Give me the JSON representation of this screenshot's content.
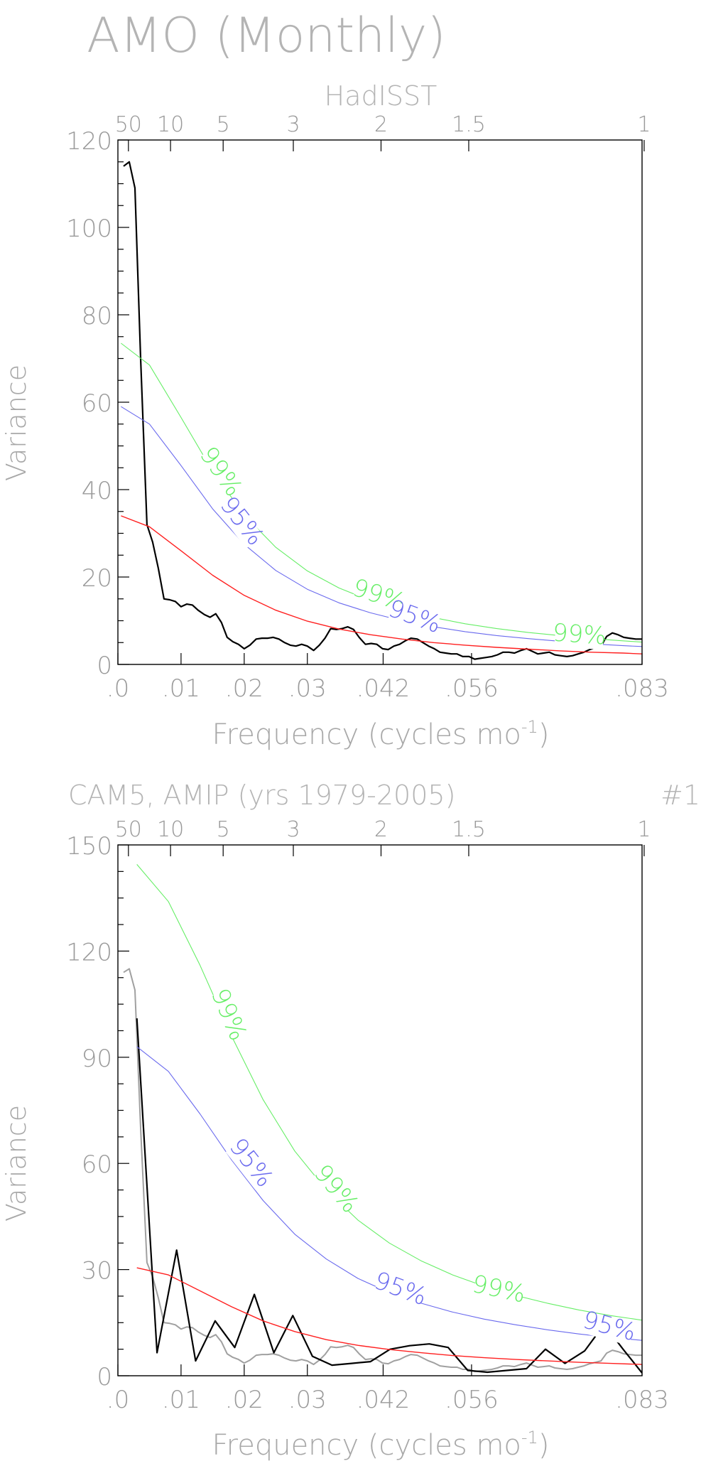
{
  "figure": {
    "title": "AMO (Monthly)"
  },
  "colors": {
    "spectrum": "#000000",
    "reference_spectrum": "#a0a0a0",
    "red_noise": "#ff2020",
    "conf95": "#6a6aee",
    "conf99": "#66ee66",
    "frame": "#000000",
    "text": "#a8a8a8"
  },
  "chart_data": [
    {
      "type": "line",
      "title": "HadISST",
      "left_title": "",
      "right_title": "",
      "xlabel": "Frequency (cycles mo",
      "xlabel_superscript": "-1",
      "xlabel_close": ")",
      "ylabel": "Variance",
      "xlim": [
        0,
        0.083
      ],
      "ylim": [
        0,
        120
      ],
      "grid": false,
      "x_ticks": [
        0,
        0.01,
        0.02,
        0.03,
        0.042,
        0.056,
        0.083
      ],
      "x_tick_labels": [
        ".0",
        ".01",
        ".02",
        ".03",
        ".042",
        ".056",
        ".083"
      ],
      "y_ticks": [
        0,
        20,
        40,
        60,
        80,
        100,
        120
      ],
      "y_tick_labels": [
        "0",
        "20",
        "40",
        "60",
        "80",
        "100",
        "120"
      ],
      "period_ticks": [
        50,
        10,
        5,
        3,
        2,
        1.5,
        1
      ],
      "period_tick_labels": [
        "50",
        "10",
        "5",
        "3",
        "2",
        "1.5",
        "1"
      ],
      "curve_labels": {
        "conf99": "99%",
        "conf95": "95%"
      },
      "series": [
        {
          "key": "spectrum",
          "color": "#000000",
          "width": 2.2,
          "x": [
            0.0009,
            0.0018,
            0.0027,
            0.0036,
            0.0046,
            0.0055,
            0.0064,
            0.0073,
            0.0082,
            0.0091,
            0.01,
            0.0109,
            0.0118,
            0.0127,
            0.0137,
            0.0146,
            0.0155,
            0.0164,
            0.0173,
            0.0182,
            0.0191,
            0.02,
            0.0209,
            0.0219,
            0.0228,
            0.0237,
            0.0246,
            0.0255,
            0.0264,
            0.0273,
            0.0282,
            0.0291,
            0.03,
            0.031,
            0.0319,
            0.0328,
            0.0337,
            0.0346,
            0.0355,
            0.0364,
            0.0373,
            0.0382,
            0.0392,
            0.0401,
            0.041,
            0.0419,
            0.0428,
            0.0437,
            0.0446,
            0.0455,
            0.0464,
            0.0474,
            0.0483,
            0.0492,
            0.0501,
            0.051,
            0.0519,
            0.0528,
            0.0537,
            0.0546,
            0.0556,
            0.0565,
            0.0574,
            0.0583,
            0.0592,
            0.0601,
            0.061,
            0.0619,
            0.0628,
            0.0638,
            0.0647,
            0.0656,
            0.0665,
            0.0674,
            0.0683,
            0.0692,
            0.0701,
            0.0711,
            0.072,
            0.0729,
            0.0738,
            0.0747,
            0.0756,
            0.0765,
            0.0774,
            0.0783,
            0.0792,
            0.0801,
            0.081,
            0.082,
            0.083
          ],
          "y": [
            114,
            115,
            109,
            70,
            32,
            28,
            22,
            15,
            14.8,
            14.4,
            13.2,
            13.8,
            13.6,
            12.4,
            11.4,
            10.8,
            11.6,
            9.6,
            6.2,
            5.2,
            4.6,
            3.6,
            4.4,
            5.8,
            6.0,
            6.0,
            6.2,
            5.8,
            5.0,
            4.4,
            4.2,
            4.6,
            4.2,
            3.2,
            4.4,
            6.0,
            8.2,
            8.0,
            8.2,
            8.6,
            8.0,
            6.2,
            4.6,
            4.8,
            4.6,
            3.6,
            3.4,
            4.2,
            4.6,
            5.4,
            6.0,
            5.8,
            5.0,
            4.2,
            3.6,
            2.8,
            2.6,
            2.4,
            2.4,
            1.8,
            1.8,
            1.2,
            1.4,
            1.6,
            1.8,
            2.2,
            2.8,
            2.8,
            2.6,
            3.2,
            3.6,
            3.0,
            2.4,
            2.6,
            2.8,
            2.2,
            2.0,
            1.8,
            2.0,
            2.4,
            2.8,
            3.4,
            3.8,
            4.2,
            6.4,
            7.2,
            6.8,
            6.2,
            6.0,
            5.8,
            5.8
          ]
        },
        {
          "key": "red_noise",
          "color": "#ff2020",
          "width": 1.4,
          "x": [
            0.0005,
            0.005,
            0.01,
            0.015,
            0.02,
            0.025,
            0.03,
            0.035,
            0.04,
            0.045,
            0.05,
            0.055,
            0.06,
            0.065,
            0.07,
            0.075,
            0.08,
            0.083
          ],
          "y": [
            34.0,
            31.5,
            26.0,
            20.4,
            15.8,
            12.4,
            9.9,
            8.1,
            6.8,
            5.8,
            5.0,
            4.4,
            3.9,
            3.5,
            3.1,
            2.8,
            2.6,
            2.4
          ]
        },
        {
          "key": "conf95",
          "color": "#6a6aee",
          "width": 1.1,
          "x": [
            0.0005,
            0.005,
            0.01,
            0.015,
            0.02,
            0.025,
            0.03,
            0.035,
            0.04,
            0.045,
            0.05,
            0.055,
            0.06,
            0.065,
            0.07,
            0.075,
            0.08,
            0.083
          ],
          "y": [
            59.0,
            55.0,
            45.5,
            35.6,
            27.5,
            21.5,
            17.2,
            14.1,
            11.8,
            10.0,
            8.6,
            7.5,
            6.6,
            5.9,
            5.3,
            4.7,
            4.3,
            4.1
          ]
        },
        {
          "key": "conf99",
          "color": "#66ee66",
          "width": 1.1,
          "x": [
            0.0005,
            0.005,
            0.01,
            0.015,
            0.02,
            0.025,
            0.03,
            0.035,
            0.04,
            0.045,
            0.05,
            0.055,
            0.06,
            0.065,
            0.07,
            0.075,
            0.08,
            0.083
          ],
          "y": [
            73.5,
            68.5,
            56.5,
            44.2,
            34.2,
            26.8,
            21.4,
            17.5,
            14.6,
            12.5,
            10.7,
            9.3,
            8.2,
            7.3,
            6.6,
            5.9,
            5.4,
            5.1
          ]
        }
      ]
    },
    {
      "type": "line",
      "title": "",
      "left_title": "CAM5, AMIP (yrs 1979-2005)",
      "right_title": "#1",
      "xlabel": "Frequency (cycles mo",
      "xlabel_superscript": "-1",
      "xlabel_close": ")",
      "ylabel": "Variance",
      "xlim": [
        0,
        0.083
      ],
      "ylim": [
        0,
        150
      ],
      "grid": false,
      "x_ticks": [
        0,
        0.01,
        0.02,
        0.03,
        0.042,
        0.056,
        0.083
      ],
      "x_tick_labels": [
        ".0",
        ".01",
        ".02",
        ".03",
        ".042",
        ".056",
        ".083"
      ],
      "y_ticks": [
        0,
        30,
        60,
        90,
        120,
        150
      ],
      "y_tick_labels": [
        "0",
        "30",
        "60",
        "90",
        "120",
        "150"
      ],
      "period_ticks": [
        50,
        10,
        5,
        3,
        2,
        1.5,
        1
      ],
      "period_tick_labels": [
        "50",
        "10",
        "5",
        "3",
        "2",
        "1.5",
        "1"
      ],
      "curve_labels": {
        "conf99": "99%",
        "conf95": "95%"
      },
      "series": [
        {
          "key": "reference_spectrum",
          "color": "#a0a0a0",
          "width": 2.0,
          "x": [
            0.0009,
            0.0018,
            0.0027,
            0.0036,
            0.0046,
            0.0055,
            0.0064,
            0.0073,
            0.0082,
            0.0091,
            0.01,
            0.0109,
            0.0118,
            0.0127,
            0.0137,
            0.0146,
            0.0155,
            0.0164,
            0.0173,
            0.0182,
            0.0191,
            0.02,
            0.0209,
            0.0219,
            0.0228,
            0.0237,
            0.0246,
            0.0255,
            0.0264,
            0.0273,
            0.0282,
            0.0291,
            0.03,
            0.031,
            0.0319,
            0.0328,
            0.0337,
            0.0346,
            0.0355,
            0.0364,
            0.0373,
            0.0382,
            0.0392,
            0.0401,
            0.041,
            0.0419,
            0.0428,
            0.0437,
            0.0446,
            0.0455,
            0.0464,
            0.0474,
            0.0483,
            0.0492,
            0.0501,
            0.051,
            0.0519,
            0.0528,
            0.0537,
            0.0546,
            0.0556,
            0.0565,
            0.0574,
            0.0583,
            0.0592,
            0.0601,
            0.061,
            0.0619,
            0.0628,
            0.0638,
            0.0647,
            0.0656,
            0.0665,
            0.0674,
            0.0683,
            0.0692,
            0.0701,
            0.0711,
            0.072,
            0.0729,
            0.0738,
            0.0747,
            0.0756,
            0.0765,
            0.0774,
            0.0783,
            0.0792,
            0.0801,
            0.081,
            0.082,
            0.083
          ],
          "y": [
            114,
            115,
            109,
            70,
            32,
            28,
            22,
            15,
            14.8,
            14.4,
            13.2,
            13.8,
            13.6,
            12.4,
            11.4,
            10.8,
            11.6,
            9.6,
            6.2,
            5.2,
            4.6,
            3.6,
            4.4,
            5.8,
            6.0,
            6.0,
            6.2,
            5.8,
            5.0,
            4.4,
            4.2,
            4.6,
            4.2,
            3.2,
            4.4,
            6.0,
            8.2,
            8.0,
            8.2,
            8.6,
            8.0,
            6.2,
            4.6,
            4.8,
            4.6,
            3.6,
            3.4,
            4.2,
            4.6,
            5.4,
            6.0,
            5.8,
            5.0,
            4.2,
            3.6,
            2.8,
            2.6,
            2.4,
            2.4,
            1.8,
            1.8,
            1.2,
            1.4,
            1.6,
            1.8,
            2.2,
            2.8,
            2.8,
            2.6,
            3.2,
            3.6,
            3.0,
            2.4,
            2.6,
            2.8,
            2.2,
            2.0,
            1.8,
            2.0,
            2.4,
            2.8,
            3.4,
            3.8,
            4.2,
            6.4,
            7.2,
            6.8,
            6.2,
            6.0,
            5.8,
            5.8
          ]
        },
        {
          "key": "spectrum",
          "color": "#000000",
          "width": 2.2,
          "x": [
            0.003,
            0.0062,
            0.0093,
            0.0123,
            0.0154,
            0.0185,
            0.0216,
            0.0247,
            0.0277,
            0.0308,
            0.0339,
            0.037,
            0.04,
            0.0431,
            0.0462,
            0.0493,
            0.0523,
            0.0554,
            0.0585,
            0.0616,
            0.0647,
            0.0677,
            0.0708,
            0.0739,
            0.077,
            0.08,
            0.083
          ],
          "y": [
            101,
            6.5,
            35.5,
            4.2,
            15.5,
            8,
            23,
            6.5,
            17,
            5.5,
            3.0,
            3.5,
            4.0,
            7.5,
            8.5,
            9.0,
            8.0,
            1.5,
            1.0,
            1.5,
            2.0,
            7.5,
            3.5,
            7.0,
            14.5,
            7.5,
            0.8
          ]
        },
        {
          "key": "red_noise",
          "color": "#ff2020",
          "width": 1.4,
          "x": [
            0.003,
            0.008,
            0.013,
            0.018,
            0.023,
            0.028,
            0.033,
            0.038,
            0.043,
            0.048,
            0.053,
            0.058,
            0.063,
            0.068,
            0.073,
            0.078,
            0.083
          ],
          "y": [
            30.5,
            28.5,
            24.0,
            19.5,
            15.5,
            12.5,
            10.2,
            8.6,
            7.4,
            6.5,
            5.7,
            5.1,
            4.6,
            4.2,
            3.8,
            3.5,
            3.2
          ]
        },
        {
          "key": "conf95",
          "color": "#6a6aee",
          "width": 1.1,
          "x": [
            0.003,
            0.008,
            0.013,
            0.018,
            0.023,
            0.028,
            0.033,
            0.038,
            0.043,
            0.048,
            0.053,
            0.058,
            0.063,
            0.068,
            0.073,
            0.078,
            0.083
          ],
          "y": [
            93.0,
            86.0,
            74.0,
            61.0,
            49.5,
            40.0,
            33.0,
            27.5,
            23.5,
            20.5,
            18.0,
            16.0,
            14.4,
            13.0,
            11.8,
            10.8,
            10.0
          ]
        },
        {
          "key": "conf99",
          "color": "#66ee66",
          "width": 1.1,
          "x": [
            0.003,
            0.008,
            0.013,
            0.018,
            0.023,
            0.028,
            0.033,
            0.038,
            0.043,
            0.048,
            0.053,
            0.058,
            0.063,
            0.068,
            0.073,
            0.078,
            0.083
          ],
          "y": [
            144.5,
            134.0,
            116.0,
            96.0,
            78.0,
            63.5,
            52.5,
            44.0,
            37.5,
            32.5,
            28.5,
            25.3,
            22.7,
            20.5,
            18.6,
            17.0,
            15.7
          ]
        }
      ]
    }
  ]
}
